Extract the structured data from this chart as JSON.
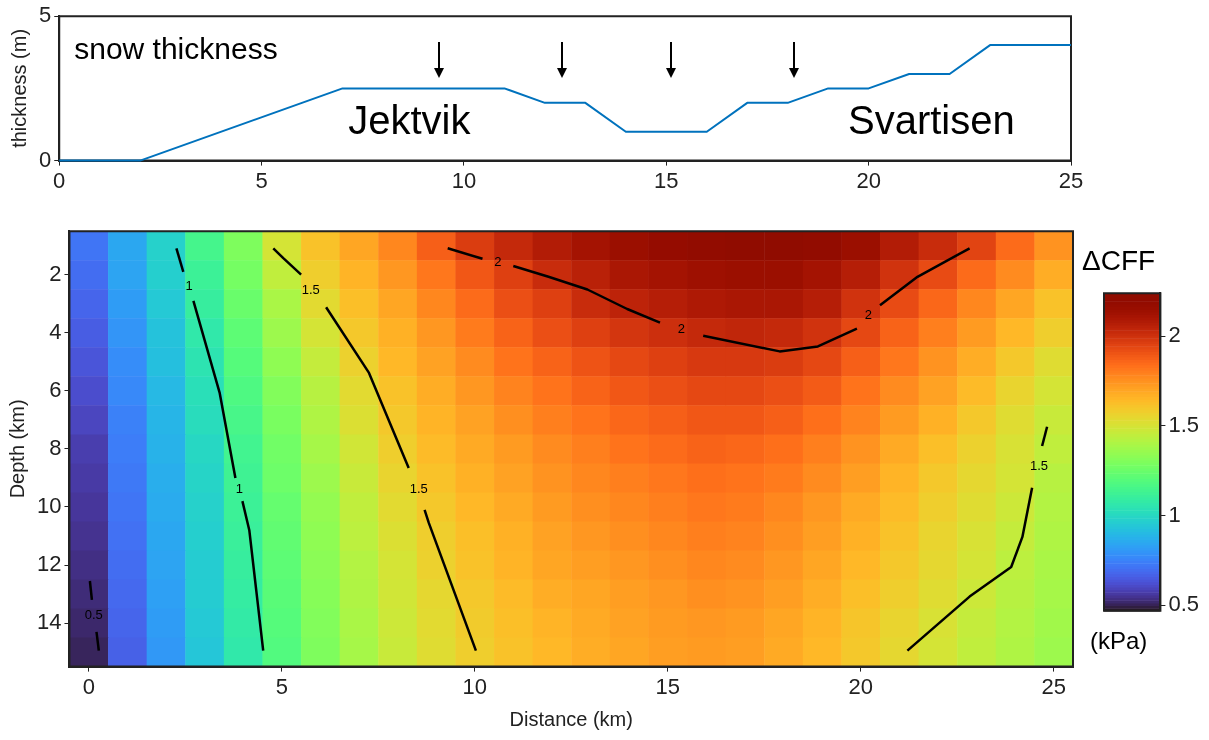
{
  "chart_data": [
    {
      "type": "line",
      "title": "snow thickness",
      "ylabel": "thickness (m)",
      "x": [
        0,
        2,
        7,
        11,
        12,
        13,
        14,
        16,
        17,
        18,
        19,
        20,
        21,
        22,
        23,
        25
      ],
      "series": [
        {
          "color": "#0072bd",
          "values": [
            0,
            0,
            2.5,
            2.5,
            2,
            2,
            1,
            1,
            2,
            2,
            2.5,
            2.5,
            3,
            3,
            4,
            4
          ]
        }
      ],
      "xlim": [
        0,
        25
      ],
      "xticks": [
        0,
        5,
        10,
        15,
        20,
        25
      ],
      "ylim": [
        0,
        5
      ],
      "yticks": [
        0,
        5
      ],
      "annotations": [
        "Jektvik",
        "Svartisen"
      ]
    },
    {
      "type": "heatmap",
      "xlabel": "Distance (km)",
      "ylabel": "Depth (km)",
      "clabel": "ΔCFF",
      "categories": [
        "0",
        null,
        null,
        null,
        null,
        "5",
        null,
        null,
        null,
        null,
        "10",
        null,
        null,
        null,
        null,
        "15",
        null,
        null,
        null,
        null,
        "20",
        null,
        null,
        null,
        null,
        "25"
      ],
      "y_categories": [
        null,
        "2",
        null,
        "4",
        null,
        "6",
        null,
        "8",
        null,
        "10",
        null,
        "12",
        null,
        "14",
        null
      ],
      "cells": [
        [
          0.72,
          0.85,
          0.98,
          1.15,
          1.3,
          1.5,
          1.62,
          1.7,
          1.78,
          1.88,
          1.97,
          2.03,
          2.08,
          2.12,
          2.15,
          2.18,
          2.2,
          2.22,
          2.22,
          2.2,
          2.15,
          2.08,
          2.02,
          1.95,
          1.85,
          1.75
        ],
        [
          0.7,
          0.84,
          0.97,
          1.12,
          1.28,
          1.45,
          1.58,
          1.66,
          1.74,
          1.82,
          1.9,
          1.96,
          2.02,
          2.06,
          2.1,
          2.12,
          2.14,
          2.15,
          2.15,
          2.12,
          2.07,
          2.0,
          1.93,
          1.85,
          1.77,
          1.68
        ],
        [
          0.68,
          0.82,
          0.95,
          1.1,
          1.25,
          1.4,
          1.54,
          1.63,
          1.7,
          1.78,
          1.85,
          1.92,
          1.96,
          2.02,
          2.05,
          2.07,
          2.09,
          2.1,
          2.1,
          2.07,
          2.0,
          1.93,
          1.86,
          1.78,
          1.7,
          1.62
        ],
        [
          0.66,
          0.8,
          0.93,
          1.07,
          1.22,
          1.37,
          1.5,
          1.6,
          1.67,
          1.74,
          1.81,
          1.87,
          1.92,
          1.96,
          1.99,
          2.01,
          2.03,
          2.04,
          2.03,
          2.0,
          1.94,
          1.87,
          1.8,
          1.73,
          1.65,
          1.58
        ],
        [
          0.64,
          0.78,
          0.92,
          1.05,
          1.2,
          1.34,
          1.46,
          1.57,
          1.65,
          1.71,
          1.77,
          1.83,
          1.87,
          1.91,
          1.94,
          1.96,
          1.98,
          1.98,
          1.97,
          1.94,
          1.88,
          1.82,
          1.75,
          1.68,
          1.6,
          1.53
        ],
        [
          0.62,
          0.77,
          0.9,
          1.03,
          1.18,
          1.31,
          1.43,
          1.54,
          1.62,
          1.68,
          1.74,
          1.79,
          1.83,
          1.87,
          1.9,
          1.92,
          1.94,
          1.94,
          1.92,
          1.89,
          1.83,
          1.77,
          1.71,
          1.64,
          1.56,
          1.5
        ],
        [
          0.6,
          0.75,
          0.89,
          1.02,
          1.16,
          1.29,
          1.41,
          1.52,
          1.6,
          1.66,
          1.71,
          1.76,
          1.8,
          1.83,
          1.86,
          1.88,
          1.9,
          1.9,
          1.88,
          1.84,
          1.79,
          1.73,
          1.67,
          1.6,
          1.53,
          1.47
        ],
        [
          0.58,
          0.74,
          0.88,
          1.0,
          1.14,
          1.27,
          1.39,
          1.49,
          1.58,
          1.64,
          1.69,
          1.73,
          1.77,
          1.8,
          1.83,
          1.85,
          1.87,
          1.86,
          1.84,
          1.8,
          1.75,
          1.69,
          1.63,
          1.57,
          1.51,
          1.45
        ],
        [
          0.57,
          0.73,
          0.87,
          0.99,
          1.13,
          1.26,
          1.37,
          1.47,
          1.56,
          1.62,
          1.67,
          1.71,
          1.75,
          1.78,
          1.8,
          1.82,
          1.84,
          1.83,
          1.81,
          1.77,
          1.72,
          1.66,
          1.6,
          1.55,
          1.5,
          1.43
        ],
        [
          0.56,
          0.72,
          0.86,
          0.98,
          1.12,
          1.24,
          1.35,
          1.45,
          1.54,
          1.6,
          1.65,
          1.69,
          1.73,
          1.76,
          1.78,
          1.8,
          1.82,
          1.81,
          1.78,
          1.74,
          1.69,
          1.64,
          1.58,
          1.53,
          1.48,
          1.42
        ],
        [
          0.55,
          0.71,
          0.85,
          0.97,
          1.11,
          1.23,
          1.34,
          1.44,
          1.52,
          1.58,
          1.63,
          1.67,
          1.71,
          1.74,
          1.76,
          1.78,
          1.8,
          1.79,
          1.76,
          1.72,
          1.67,
          1.62,
          1.56,
          1.51,
          1.46,
          1.41
        ],
        [
          0.54,
          0.7,
          0.84,
          0.96,
          1.1,
          1.22,
          1.33,
          1.42,
          1.5,
          1.57,
          1.62,
          1.66,
          1.7,
          1.72,
          1.74,
          1.76,
          1.78,
          1.77,
          1.74,
          1.7,
          1.65,
          1.6,
          1.55,
          1.5,
          1.44,
          1.4
        ],
        [
          0.53,
          0.69,
          0.83,
          0.96,
          1.09,
          1.21,
          1.32,
          1.41,
          1.49,
          1.55,
          1.6,
          1.64,
          1.68,
          1.7,
          1.72,
          1.74,
          1.76,
          1.75,
          1.72,
          1.68,
          1.63,
          1.58,
          1.53,
          1.48,
          1.43,
          1.39
        ],
        [
          0.52,
          0.68,
          0.82,
          0.95,
          1.08,
          1.2,
          1.31,
          1.4,
          1.48,
          1.54,
          1.59,
          1.63,
          1.66,
          1.69,
          1.71,
          1.73,
          1.74,
          1.73,
          1.7,
          1.66,
          1.61,
          1.56,
          1.51,
          1.46,
          1.42,
          1.38
        ],
        [
          0.51,
          0.67,
          0.81,
          0.94,
          1.07,
          1.19,
          1.3,
          1.39,
          1.47,
          1.53,
          1.58,
          1.62,
          1.65,
          1.68,
          1.7,
          1.72,
          1.73,
          1.72,
          1.69,
          1.65,
          1.6,
          1.55,
          1.5,
          1.45,
          1.41,
          1.37
        ]
      ],
      "clim": [
        0.47,
        2.24
      ],
      "cticks": [
        0.5,
        1,
        1.5,
        2
      ],
      "annotations": [
        "1",
        "1",
        "1.5",
        "1.5",
        "1.5",
        "2",
        "2",
        "2",
        "0.5",
        "(kPa)"
      ]
    }
  ]
}
